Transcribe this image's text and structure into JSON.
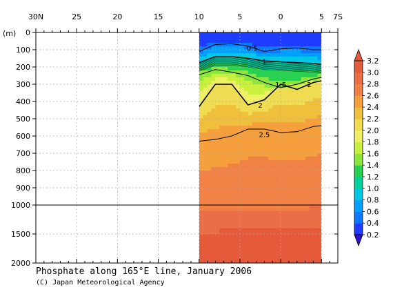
{
  "chart_data": {
    "type": "heatmap",
    "title": "Phosphate along 165°E line, January 2006",
    "credit": "(C) Japan Meteorological Agency",
    "ylabel": "(m)",
    "x_ticks": [
      "30N",
      "25",
      "20",
      "15",
      "10",
      "5",
      "0",
      "5",
      "7S"
    ],
    "x_tick_values": [
      30,
      25,
      20,
      15,
      10,
      5,
      0,
      -5,
      -7
    ],
    "xlim": [
      30,
      -7
    ],
    "y_ticks": [
      "0",
      "100",
      "200",
      "300",
      "400",
      "500",
      "600",
      "700",
      "800",
      "900",
      "1000",
      "1500",
      "2000"
    ],
    "y_tick_values": [
      0,
      100,
      200,
      300,
      400,
      500,
      600,
      700,
      800,
      900,
      1000,
      1500,
      2000
    ],
    "ylim": [
      0,
      2000
    ],
    "y_axis_break": 1000,
    "data_extent_lat": [
      10,
      -5
    ],
    "colorbar": {
      "labels": [
        "3.2",
        "3.0",
        "2.8",
        "2.6",
        "2.4",
        "2.2",
        "2.0",
        "1.8",
        "1.6",
        "1.4",
        "1.2",
        "1.0",
        "0.8",
        "0.6",
        "0.4",
        "0.2"
      ],
      "levels": [
        0.2,
        0.4,
        0.6,
        0.8,
        1.0,
        1.2,
        1.4,
        1.6,
        1.8,
        2.0,
        2.2,
        2.4,
        2.6,
        2.8,
        3.0,
        3.2
      ],
      "colors": [
        "#1e3cff",
        "#0a78ff",
        "#00a0ff",
        "#00c8e6",
        "#00d2a0",
        "#28d250",
        "#8ce63c",
        "#c8f03c",
        "#f0f064",
        "#f0dc50",
        "#f0c03c",
        "#f5a03c",
        "#f08246",
        "#eb6e46",
        "#e65a3c"
      ]
    },
    "contour_labels": [
      "0.5",
      "1",
      "1.5",
      "2",
      "2",
      "2.5"
    ],
    "series": [
      {
        "name": "0.5",
        "lat": [
          10,
          8,
          6,
          4,
          2,
          0,
          -2,
          -4,
          -5
        ],
        "depth": [
          110,
          70,
          65,
          80,
          110,
          95,
          90,
          100,
          100
        ]
      },
      {
        "name": "1",
        "lat": [
          10,
          8,
          6,
          4,
          2,
          0,
          -2,
          -4,
          -5
        ],
        "depth": [
          175,
          140,
          140,
          150,
          165,
          170,
          175,
          180,
          185
        ]
      },
      {
        "name": "1.5",
        "lat": [
          10,
          8,
          6,
          4,
          2,
          0,
          -2,
          -4,
          -5
        ],
        "depth": [
          245,
          215,
          230,
          250,
          290,
          320,
          300,
          270,
          260
        ]
      },
      {
        "name": "2",
        "lat": [
          10,
          8,
          6,
          4,
          2,
          0,
          -2,
          -4,
          -5
        ],
        "depth": [
          430,
          300,
          300,
          420,
          390,
          300,
          330,
          290,
          280
        ]
      },
      {
        "name": "2.5",
        "lat": [
          10,
          8,
          6,
          4,
          2,
          0,
          -2,
          -4,
          -5
        ],
        "depth": [
          630,
          620,
          600,
          560,
          560,
          580,
          575,
          545,
          540
        ]
      }
    ]
  }
}
